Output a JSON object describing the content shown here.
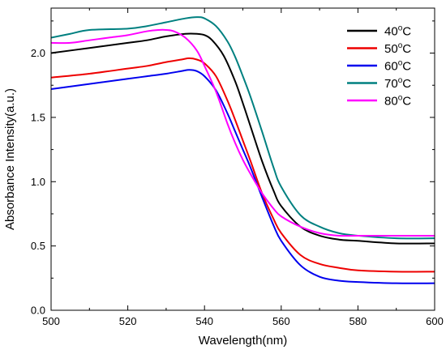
{
  "chart_data": {
    "type": "line",
    "xlabel": "Wavelength(nm)",
    "ylabel": "Absorbance Intensity(a.u.)",
    "xlim": [
      500,
      600
    ],
    "ylim": [
      0.0,
      2.35
    ],
    "x_ticks": [
      500,
      520,
      540,
      560,
      580,
      600
    ],
    "y_ticks": [
      0.0,
      0.5,
      1.0,
      1.5,
      2.0
    ],
    "x_tick_labels": [
      "500",
      "520",
      "540",
      "560",
      "580",
      "600"
    ],
    "y_tick_labels": [
      "0.0",
      "0.5",
      "1.0",
      "1.5",
      "2.0"
    ],
    "grid": false,
    "legend_position": "top-right",
    "series": [
      {
        "name": "40°C",
        "label_main": "40",
        "label_sup": "o",
        "label_unit": "C",
        "color": "#000000",
        "x": [
          500,
          510,
          520,
          525,
          530,
          535,
          538,
          540,
          542,
          545,
          548,
          550,
          552,
          555,
          558,
          560,
          565,
          570,
          575,
          580,
          590,
          600
        ],
        "y": [
          2.0,
          2.04,
          2.08,
          2.1,
          2.13,
          2.15,
          2.15,
          2.14,
          2.1,
          1.98,
          1.78,
          1.61,
          1.43,
          1.16,
          0.93,
          0.81,
          0.65,
          0.58,
          0.55,
          0.54,
          0.52,
          0.52
        ]
      },
      {
        "name": "50°C",
        "label_main": "50",
        "label_sup": "o",
        "label_unit": "C",
        "color": "#ee0000",
        "x": [
          500,
          510,
          520,
          525,
          530,
          534,
          536,
          538,
          540,
          543,
          546,
          548,
          550,
          552,
          555,
          558,
          560,
          565,
          570,
          575,
          580,
          590,
          600
        ],
        "y": [
          1.81,
          1.84,
          1.88,
          1.9,
          1.93,
          1.95,
          1.96,
          1.95,
          1.92,
          1.82,
          1.63,
          1.48,
          1.32,
          1.16,
          0.91,
          0.71,
          0.6,
          0.43,
          0.36,
          0.33,
          0.31,
          0.3,
          0.3
        ]
      },
      {
        "name": "60°C",
        "label_main": "60",
        "label_sup": "o",
        "label_unit": "C",
        "color": "#0000ee",
        "x": [
          500,
          510,
          520,
          525,
          530,
          534,
          536,
          538,
          540,
          543,
          546,
          548,
          550,
          552,
          555,
          558,
          560,
          565,
          570,
          575,
          580,
          590,
          600
        ],
        "y": [
          1.72,
          1.76,
          1.8,
          1.82,
          1.84,
          1.86,
          1.87,
          1.86,
          1.82,
          1.71,
          1.53,
          1.39,
          1.25,
          1.11,
          0.88,
          0.66,
          0.54,
          0.35,
          0.26,
          0.23,
          0.22,
          0.21,
          0.21
        ]
      },
      {
        "name": "70°C",
        "label_main": "70",
        "label_sup": "o",
        "label_unit": "C",
        "color": "#008080",
        "x": [
          500,
          505,
          510,
          520,
          525,
          530,
          535,
          538,
          540,
          543,
          546,
          548,
          550,
          552,
          555,
          558,
          560,
          565,
          570,
          575,
          580,
          590,
          600
        ],
        "y": [
          2.12,
          2.15,
          2.18,
          2.19,
          2.21,
          2.24,
          2.27,
          2.28,
          2.27,
          2.21,
          2.09,
          1.97,
          1.82,
          1.66,
          1.39,
          1.11,
          0.96,
          0.74,
          0.65,
          0.6,
          0.58,
          0.56,
          0.56
        ]
      },
      {
        "name": "80°C",
        "label_main": "80",
        "label_sup": "o",
        "label_unit": "C",
        "color": "#ff00ff",
        "x": [
          500,
          505,
          510,
          515,
          520,
          525,
          528,
          530,
          532,
          535,
          538,
          540,
          543,
          546,
          548,
          550,
          552,
          555,
          558,
          560,
          565,
          570,
          575,
          580,
          590,
          600
        ],
        "y": [
          2.08,
          2.08,
          2.1,
          2.12,
          2.14,
          2.17,
          2.18,
          2.18,
          2.17,
          2.12,
          2.02,
          1.9,
          1.7,
          1.45,
          1.3,
          1.17,
          1.06,
          0.91,
          0.79,
          0.73,
          0.65,
          0.6,
          0.58,
          0.58,
          0.58,
          0.58
        ]
      }
    ]
  }
}
